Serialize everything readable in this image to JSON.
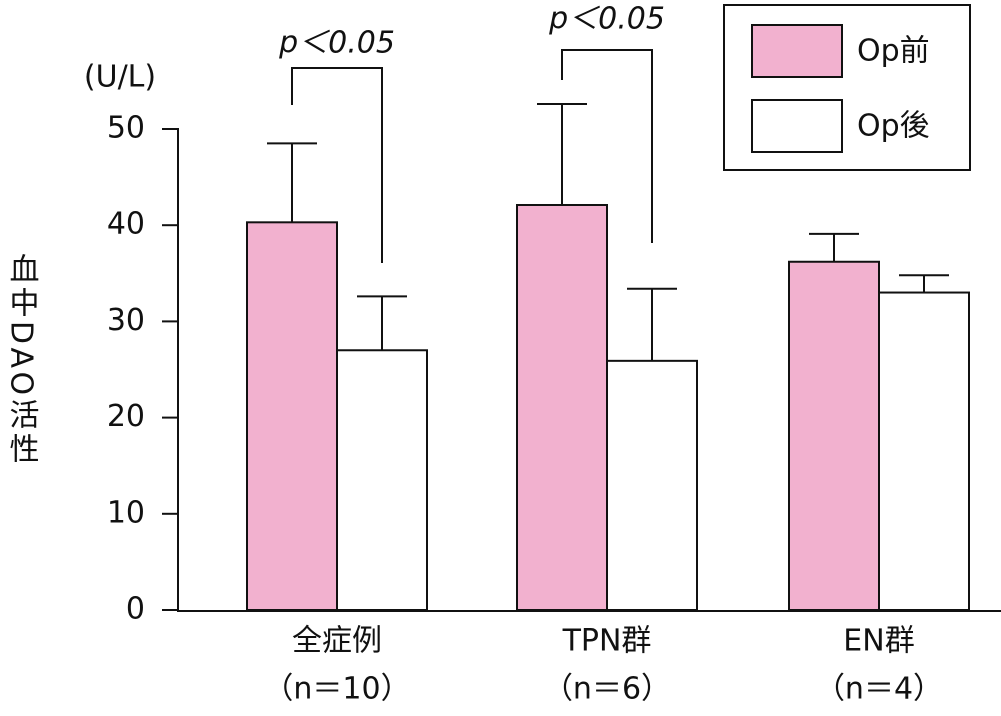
{
  "chart_data": {
    "type": "bar",
    "y_label": "血中DAO活性",
    "unit": "(U/L)",
    "categories": [
      "全症例",
      "TPN群",
      "EN群"
    ],
    "category_notes": [
      "（n＝10）",
      "（n＝6）",
      "（n＝4）"
    ],
    "series": [
      {
        "name": "Op前",
        "color": "#f2b1cf",
        "values": [
          40.3,
          42.1,
          36.2
        ],
        "errors": [
          8.2,
          10.5,
          2.9
        ]
      },
      {
        "name": "Op後",
        "color": "#ffffff",
        "values": [
          27.0,
          25.9,
          33.0
        ],
        "errors": [
          5.6,
          7.5,
          1.8
        ]
      }
    ],
    "annotations": [
      "p＜0.05",
      "p＜0.05"
    ],
    "ylim": [
      0,
      50
    ],
    "yticks": [
      0,
      10,
      20,
      30,
      40,
      50
    ],
    "legend": "upper right"
  }
}
